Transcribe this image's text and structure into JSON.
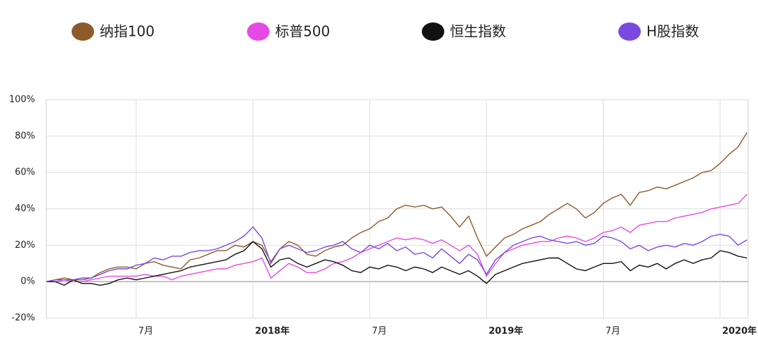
{
  "chart_data": {
    "type": "line",
    "categories": [
      null,
      null,
      null,
      null,
      null,
      null,
      null,
      null,
      null,
      null,
      "7月",
      null,
      null,
      null,
      null,
      null,
      null,
      null,
      null,
      null,
      null,
      null,
      null,
      "2018年",
      null,
      null,
      null,
      null,
      null,
      null,
      null,
      null,
      null,
      null,
      null,
      null,
      "7月",
      null,
      null,
      null,
      null,
      null,
      null,
      null,
      null,
      null,
      null,
      null,
      null,
      "2019年",
      null,
      null,
      null,
      null,
      null,
      null,
      null,
      null,
      null,
      null,
      null,
      null,
      "7月",
      null,
      null,
      null,
      null,
      null,
      null,
      null,
      null,
      null,
      null,
      null,
      null,
      "2020年",
      null,
      null,
      null
    ],
    "series": [
      {
        "name": "纳指100",
        "color": "#8e5a2a",
        "values": [
          0,
          1,
          2,
          1,
          1,
          2,
          5,
          7,
          8,
          8,
          7,
          10,
          11,
          9,
          8,
          7,
          12,
          13,
          15,
          17,
          17,
          20,
          19,
          22,
          20,
          11,
          18,
          22,
          20,
          15,
          14,
          17,
          19,
          20,
          24,
          27,
          29,
          33,
          35,
          40,
          42,
          41,
          42,
          40,
          41,
          36,
          30,
          36,
          24,
          14,
          19,
          24,
          26,
          29,
          31,
          33,
          37,
          40,
          43,
          40,
          35,
          38,
          43,
          46,
          48,
          42,
          49,
          50,
          52,
          51,
          53,
          55,
          57,
          60,
          61,
          65,
          70,
          74,
          82
        ]
      },
      {
        "name": "标普500",
        "color": "#e64ae4",
        "values": [
          0,
          0,
          1,
          0,
          0,
          1,
          2,
          3,
          3,
          3,
          3,
          4,
          3,
          3,
          1,
          3,
          4,
          5,
          6,
          7,
          7,
          9,
          10,
          11,
          13,
          2,
          6,
          10,
          8,
          5,
          5,
          7,
          10,
          11,
          13,
          16,
          18,
          20,
          22,
          24,
          23,
          24,
          23,
          21,
          23,
          20,
          17,
          20,
          15,
          3,
          10,
          16,
          18,
          20,
          21,
          22,
          22,
          24,
          25,
          24,
          22,
          24,
          27,
          28,
          30,
          27,
          31,
          32,
          33,
          33,
          35,
          36,
          37,
          38,
          40,
          41,
          42,
          43,
          48
        ]
      },
      {
        "name": "恒生指数",
        "color": "#111111",
        "values": [
          0,
          0,
          -2,
          1,
          -1,
          -1,
          -2,
          -1,
          1,
          2,
          1,
          2,
          3,
          4,
          5,
          6,
          8,
          9,
          10,
          11,
          12,
          15,
          17,
          22,
          18,
          8,
          12,
          13,
          10,
          8,
          10,
          12,
          11,
          9,
          6,
          5,
          8,
          7,
          9,
          8,
          6,
          8,
          7,
          5,
          8,
          6,
          4,
          6,
          3,
          -1,
          4,
          6,
          8,
          10,
          11,
          12,
          13,
          13,
          10,
          7,
          6,
          8,
          10,
          10,
          11,
          6,
          9,
          8,
          10,
          7,
          10,
          12,
          10,
          12,
          13,
          17,
          16,
          14,
          13
        ]
      },
      {
        "name": "H股指数",
        "color": "#7a4ae0",
        "values": [
          0,
          1,
          1,
          1,
          2,
          2,
          4,
          6,
          7,
          7,
          9,
          10,
          13,
          12,
          14,
          14,
          16,
          17,
          17,
          18,
          20,
          22,
          25,
          30,
          24,
          10,
          18,
          20,
          18,
          16,
          17,
          19,
          20,
          22,
          18,
          16,
          20,
          18,
          21,
          17,
          19,
          15,
          16,
          13,
          18,
          14,
          10,
          15,
          12,
          4,
          12,
          16,
          20,
          22,
          24,
          25,
          23,
          22,
          21,
          22,
          20,
          21,
          25,
          24,
          22,
          18,
          20,
          17,
          19,
          20,
          19,
          21,
          20,
          22,
          25,
          26,
          25,
          20,
          23
        ]
      }
    ],
    "ylim": [
      -20,
      100
    ],
    "yticks": [
      {
        "value": -20,
        "label": "-20%"
      },
      {
        "value": 0,
        "label": "0%"
      },
      {
        "value": 20,
        "label": "20%"
      },
      {
        "value": 40,
        "label": "40%"
      },
      {
        "value": 60,
        "label": "60%"
      },
      {
        "value": 80,
        "label": "80%"
      },
      {
        "value": 100,
        "label": "100%"
      }
    ],
    "grid": true
  }
}
